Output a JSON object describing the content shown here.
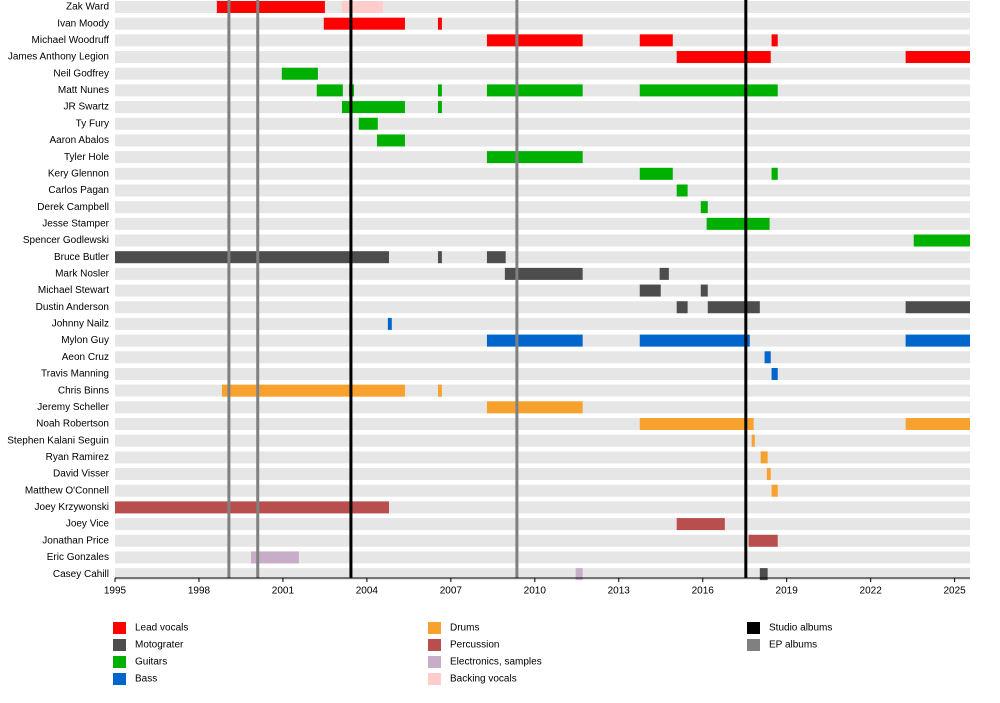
{
  "chart_data": {
    "type": "timeline",
    "xlim": [
      1995,
      2025.55
    ],
    "xticks": [
      1995,
      1998,
      2001,
      2004,
      2007,
      2010,
      2013,
      2016,
      2019,
      2022,
      2025
    ],
    "series": [
      {
        "name": "Lead vocals",
        "color": "#ff0000"
      },
      {
        "name": "Motograter",
        "color": "#4d4d4d"
      },
      {
        "name": "Guitars",
        "color": "#00b000"
      },
      {
        "name": "Bass",
        "color": "#0066cc"
      },
      {
        "name": "Drums",
        "color": "#f7a22e"
      },
      {
        "name": "Percussion",
        "color": "#b84e4e"
      },
      {
        "name": "Electronics, samples",
        "color": "#c8adc8"
      },
      {
        "name": "Backing vocals",
        "color": "#ffcccc"
      }
    ],
    "markers": [
      {
        "name": "Studio albums",
        "color": "#000000",
        "values": [
          2003.43,
          2017.54
        ]
      },
      {
        "name": "EP albums",
        "color": "#808080",
        "values": [
          1999.07,
          2000.1,
          2009.36
        ]
      }
    ],
    "rows": [
      {
        "name": "Zak Ward",
        "periods": [
          {
            "role": "Lead vocals",
            "start": 1998.64,
            "end": 2002.5
          },
          {
            "role": "Backing vocals",
            "start": 2003.11,
            "end": 2004.57
          }
        ]
      },
      {
        "name": "Ivan Moody",
        "periods": [
          {
            "role": "Lead vocals",
            "start": 2002.46,
            "end": 2005.36
          },
          {
            "role": "Lead vocals",
            "start": 2006.54,
            "end": 2006.68
          }
        ]
      },
      {
        "name": "Michael Woodruff",
        "periods": [
          {
            "role": "Lead vocals",
            "start": 2008.29,
            "end": 2011.71
          },
          {
            "role": "Lead vocals",
            "start": 2013.75,
            "end": 2014.93
          },
          {
            "role": "Lead vocals",
            "start": 2018.46,
            "end": 2018.68
          }
        ]
      },
      {
        "name": "James Anthony Legion",
        "periods": [
          {
            "role": "Lead vocals",
            "start": 2015.07,
            "end": 2018.43
          },
          {
            "role": "Lead vocals",
            "start": 2023.25,
            "end": 2025.55
          }
        ]
      },
      {
        "name": "Neil Godfrey",
        "periods": [
          {
            "role": "Guitars",
            "start": 2000.96,
            "end": 2002.25
          }
        ]
      },
      {
        "name": "Matt Nunes",
        "periods": [
          {
            "role": "Guitars",
            "start": 2002.21,
            "end": 2003.14
          },
          {
            "role": "Guitars",
            "start": 2003.36,
            "end": 2003.54
          },
          {
            "role": "Guitars",
            "start": 2006.54,
            "end": 2006.68
          },
          {
            "role": "Guitars",
            "start": 2008.29,
            "end": 2011.71
          },
          {
            "role": "Guitars",
            "start": 2013.75,
            "end": 2018.68
          }
        ]
      },
      {
        "name": "JR Swartz",
        "periods": [
          {
            "role": "Guitars",
            "start": 2003.11,
            "end": 2005.36
          },
          {
            "role": "Guitars",
            "start": 2006.54,
            "end": 2006.68
          }
        ]
      },
      {
        "name": "Ty Fury",
        "periods": [
          {
            "role": "Guitars",
            "start": 2003.71,
            "end": 2004.39
          }
        ]
      },
      {
        "name": "Aaron Abalos",
        "periods": [
          {
            "role": "Guitars",
            "start": 2004.36,
            "end": 2005.36
          }
        ]
      },
      {
        "name": "Tyler Hole",
        "periods": [
          {
            "role": "Guitars",
            "start": 2008.29,
            "end": 2011.71
          }
        ]
      },
      {
        "name": "Kery Glennon",
        "periods": [
          {
            "role": "Guitars",
            "start": 2013.75,
            "end": 2014.93
          },
          {
            "role": "Guitars",
            "start": 2018.46,
            "end": 2018.68
          }
        ]
      },
      {
        "name": "Carlos Pagan",
        "periods": [
          {
            "role": "Guitars",
            "start": 2015.07,
            "end": 2015.46
          }
        ]
      },
      {
        "name": "Derek Campbell",
        "periods": [
          {
            "role": "Guitars",
            "start": 2015.93,
            "end": 2016.18
          }
        ]
      },
      {
        "name": "Jesse Stamper",
        "periods": [
          {
            "role": "Guitars",
            "start": 2016.14,
            "end": 2018.39
          }
        ]
      },
      {
        "name": "Spencer Godlewski",
        "periods": [
          {
            "role": "Guitars",
            "start": 2023.54,
            "end": 2025.55
          }
        ]
      },
      {
        "name": "Bruce Butler",
        "periods": [
          {
            "role": "Motograter",
            "start": 1995,
            "end": 2004.79
          },
          {
            "role": "Motograter",
            "start": 2006.54,
            "end": 2006.68
          },
          {
            "role": "Motograter",
            "start": 2008.29,
            "end": 2008.96
          }
        ]
      },
      {
        "name": "Mark Nosler",
        "periods": [
          {
            "role": "Motograter",
            "start": 2008.93,
            "end": 2011.71
          },
          {
            "role": "Motograter",
            "start": 2014.46,
            "end": 2014.79
          }
        ]
      },
      {
        "name": "Michael Stewart",
        "periods": [
          {
            "role": "Motograter",
            "start": 2013.75,
            "end": 2014.5
          },
          {
            "role": "Motograter",
            "start": 2015.93,
            "end": 2016.18
          }
        ]
      },
      {
        "name": "Dustin Anderson",
        "periods": [
          {
            "role": "Motograter",
            "start": 2015.07,
            "end": 2015.46
          },
          {
            "role": "Motograter",
            "start": 2016.18,
            "end": 2018.04
          },
          {
            "role": "Motograter",
            "start": 2023.25,
            "end": 2025.55
          }
        ]
      },
      {
        "name": "Johnny Nailz",
        "periods": [
          {
            "role": "Bass",
            "start": 2004.75,
            "end": 2004.89
          }
        ]
      },
      {
        "name": "Mylon Guy",
        "periods": [
          {
            "role": "Bass",
            "start": 2008.29,
            "end": 2011.71
          },
          {
            "role": "Bass",
            "start": 2013.75,
            "end": 2017.68
          },
          {
            "role": "Bass",
            "start": 2023.25,
            "end": 2025.55
          }
        ]
      },
      {
        "name": "Aeon Cruz",
        "periods": [
          {
            "role": "Bass",
            "start": 2018.21,
            "end": 2018.43
          }
        ]
      },
      {
        "name": "Travis Manning",
        "periods": [
          {
            "role": "Bass",
            "start": 2018.46,
            "end": 2018.68
          }
        ]
      },
      {
        "name": "Chris Binns",
        "periods": [
          {
            "role": "Drums",
            "start": 1998.82,
            "end": 2005.36
          },
          {
            "role": "Drums",
            "start": 2006.54,
            "end": 2006.68
          }
        ]
      },
      {
        "name": "Jeremy Scheller",
        "periods": [
          {
            "role": "Drums",
            "start": 2008.29,
            "end": 2011.71
          }
        ]
      },
      {
        "name": "Noah Robertson",
        "periods": [
          {
            "role": "Drums",
            "start": 2013.75,
            "end": 2017.82
          },
          {
            "role": "Drums",
            "start": 2023.25,
            "end": 2025.55
          }
        ]
      },
      {
        "name": "Stephen Kalani Seguin",
        "periods": [
          {
            "role": "Drums",
            "start": 2017.75,
            "end": 2017.86
          }
        ]
      },
      {
        "name": "Ryan Ramirez",
        "periods": [
          {
            "role": "Drums",
            "start": 2018.07,
            "end": 2018.32
          }
        ]
      },
      {
        "name": "David Visser",
        "periods": [
          {
            "role": "Drums",
            "start": 2018.29,
            "end": 2018.43
          }
        ]
      },
      {
        "name": "Matthew O'Connell",
        "periods": [
          {
            "role": "Drums",
            "start": 2018.46,
            "end": 2018.68
          }
        ]
      },
      {
        "name": "Joey Krzywonski",
        "periods": [
          {
            "role": "Percussion",
            "start": 1995,
            "end": 2004.79
          }
        ]
      },
      {
        "name": "Joey Vice",
        "periods": [
          {
            "role": "Percussion",
            "start": 2015.07,
            "end": 2016.79
          }
        ]
      },
      {
        "name": "Jonathan Price",
        "periods": [
          {
            "role": "Percussion",
            "start": 2017.64,
            "end": 2018.68
          }
        ]
      },
      {
        "name": "Eric Gonzales",
        "periods": [
          {
            "role": "Electronics, samples",
            "start": 1999.86,
            "end": 2001.57
          }
        ]
      },
      {
        "name": "Casey Cahill",
        "periods": [
          {
            "role": "Electronics, samples",
            "start": 2011.46,
            "end": 2011.71
          },
          {
            "role": "Motograter",
            "start": 2018.04,
            "end": 2018.32
          }
        ]
      }
    ]
  }
}
